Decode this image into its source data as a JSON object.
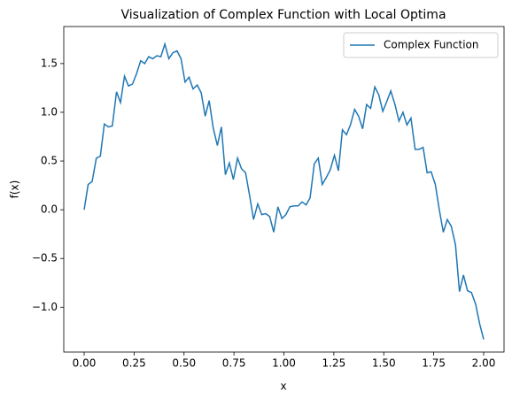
{
  "chart_data": {
    "type": "line",
    "title": "Visualization of Complex Function with Local Optima",
    "x_label": "x",
    "y_label": "f(x)",
    "x": [
      0,
      0.02,
      0.04,
      0.061,
      0.081,
      0.101,
      0.121,
      0.141,
      0.162,
      0.182,
      0.202,
      0.222,
      0.242,
      0.263,
      0.283,
      0.303,
      0.323,
      0.343,
      0.364,
      0.384,
      0.404,
      0.424,
      0.444,
      0.465,
      0.485,
      0.505,
      0.525,
      0.545,
      0.566,
      0.586,
      0.606,
      0.626,
      0.646,
      0.667,
      0.687,
      0.707,
      0.727,
      0.747,
      0.768,
      0.788,
      0.808,
      0.828,
      0.848,
      0.869,
      0.889,
      0.909,
      0.929,
      0.949,
      0.97,
      0.99,
      1.01,
      1.03,
      1.051,
      1.071,
      1.091,
      1.111,
      1.131,
      1.152,
      1.172,
      1.192,
      1.212,
      1.232,
      1.253,
      1.273,
      1.293,
      1.313,
      1.333,
      1.354,
      1.374,
      1.394,
      1.414,
      1.434,
      1.455,
      1.475,
      1.495,
      1.515,
      1.535,
      1.556,
      1.576,
      1.596,
      1.616,
      1.636,
      1.657,
      1.677,
      1.697,
      1.717,
      1.737,
      1.758,
      1.778,
      1.798,
      1.818,
      1.838,
      1.859,
      1.879,
      1.899,
      1.919,
      1.939,
      1.96,
      1.98,
      2.0
    ],
    "series": [
      {
        "name": "Complex Function",
        "color": "#1f77b4",
        "values": [
          0.0,
          0.26,
          0.29,
          0.53,
          0.55,
          0.88,
          0.85,
          0.86,
          1.21,
          1.1,
          1.37,
          1.27,
          1.29,
          1.4,
          1.53,
          1.5,
          1.57,
          1.55,
          1.58,
          1.57,
          1.7,
          1.55,
          1.61,
          1.63,
          1.55,
          1.31,
          1.36,
          1.24,
          1.28,
          1.2,
          0.96,
          1.12,
          0.84,
          0.66,
          0.85,
          0.36,
          0.48,
          0.31,
          0.53,
          0.42,
          0.38,
          0.15,
          -0.1,
          0.06,
          -0.05,
          -0.04,
          -0.07,
          -0.23,
          0.03,
          -0.09,
          -0.05,
          0.03,
          0.04,
          0.04,
          0.08,
          0.05,
          0.12,
          0.47,
          0.53,
          0.26,
          0.33,
          0.41,
          0.56,
          0.4,
          0.82,
          0.77,
          0.87,
          1.03,
          0.96,
          0.83,
          1.08,
          1.04,
          1.26,
          1.18,
          1.01,
          1.11,
          1.22,
          1.08,
          0.91,
          1.0,
          0.87,
          0.94,
          0.62,
          0.62,
          0.64,
          0.38,
          0.39,
          0.26,
          0.0,
          -0.23,
          -0.1,
          -0.17,
          -0.36,
          -0.84,
          -0.67,
          -0.83,
          -0.85,
          -0.97,
          -1.17,
          -1.33
        ]
      }
    ],
    "xlim": [
      -0.102,
      2.102
    ],
    "ylim": [
      -1.46,
      1.88
    ],
    "xticks": [
      {
        "value": 0,
        "label": "0.00"
      },
      {
        "value": 0.25,
        "label": "0.25"
      },
      {
        "value": 0.5,
        "label": "0.50"
      },
      {
        "value": 0.75,
        "label": "0.75"
      },
      {
        "value": 1,
        "label": "1.00"
      },
      {
        "value": 1.25,
        "label": "1.25"
      },
      {
        "value": 1.5,
        "label": "1.50"
      },
      {
        "value": 1.75,
        "label": "1.75"
      },
      {
        "value": 2,
        "label": "2.00"
      }
    ],
    "yticks": [
      {
        "value": -1,
        "label": "−1.0"
      },
      {
        "value": -0.5,
        "label": "−0.5"
      },
      {
        "value": 0,
        "label": "0.0"
      },
      {
        "value": 0.5,
        "label": "0.5"
      },
      {
        "value": 1,
        "label": "1.0"
      },
      {
        "value": 1.5,
        "label": "1.5"
      }
    ],
    "legend": "upper right",
    "grid": false
  }
}
